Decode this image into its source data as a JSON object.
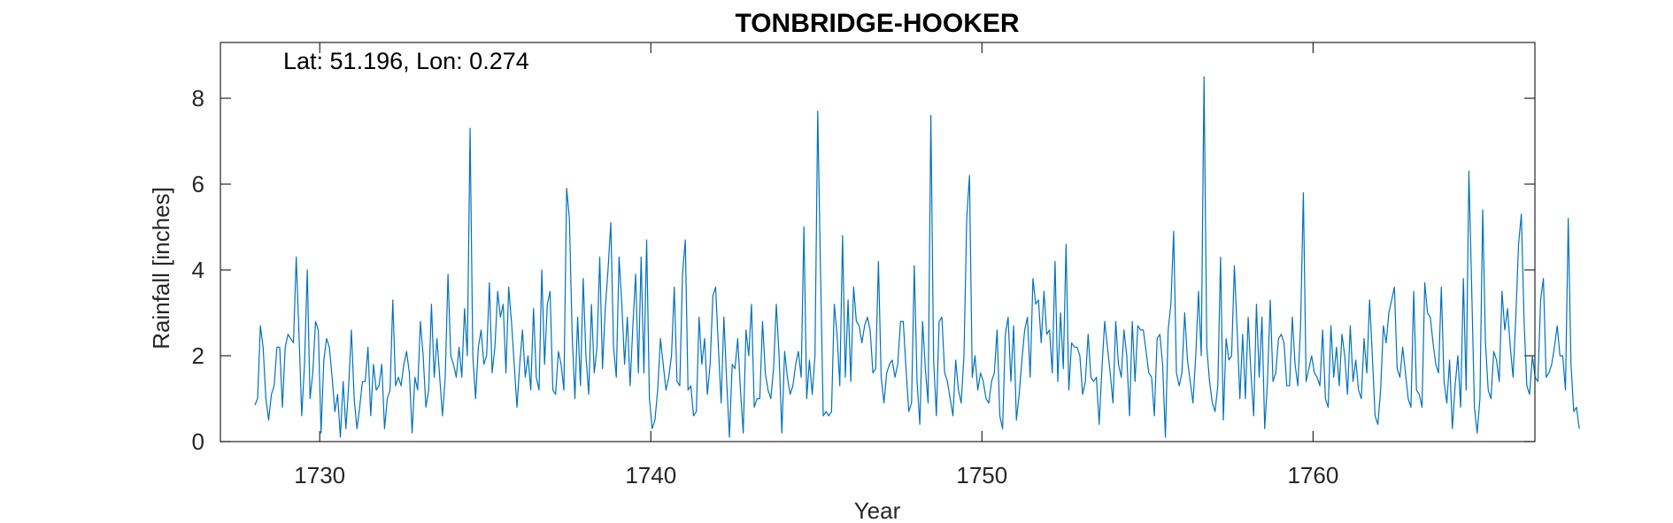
{
  "chart_data": {
    "type": "line",
    "title": "TONBRIDGE-HOOKER",
    "xlabel": "Year",
    "ylabel": "Rainfall [inches]",
    "annotation": "Lat: 51.196, Lon: 0.274",
    "xlim": [
      1727,
      1766.7
    ],
    "ylim": [
      0,
      9.3
    ],
    "xticks": [
      1730,
      1740,
      1750,
      1760
    ],
    "yticks": [
      0,
      2,
      4,
      6,
      8
    ],
    "grid": false,
    "line_color": "#0072BD",
    "series": [
      {
        "x_start": 1728.04,
        "x_step": 0.083333,
        "values": [
          0.85,
          1.0,
          2.7,
          2.2,
          1.0,
          0.5,
          1.1,
          1.3,
          2.2,
          2.2,
          0.8,
          2.2,
          2.5,
          2.4,
          2.3,
          4.3,
          2.5,
          0.6,
          1.8,
          4.0,
          1.0,
          1.6,
          2.8,
          2.6,
          0.2,
          1.9,
          2.4,
          2.2,
          1.5,
          0.7,
          1.1,
          0.1,
          1.4,
          0.3,
          1.3,
          2.6,
          1.0,
          0.3,
          0.8,
          1.4,
          1.4,
          2.2,
          0.6,
          1.8,
          1.2,
          1.3,
          1.8,
          0.3,
          1.0,
          1.2,
          3.3,
          1.3,
          1.5,
          1.3,
          1.8,
          2.1,
          1.6,
          0.2,
          1.5,
          1.2,
          2.8,
          2.0,
          0.8,
          1.2,
          3.2,
          1.5,
          2.4,
          1.5,
          0.6,
          1.5,
          3.9,
          2.0,
          1.8,
          1.5,
          2.2,
          1.5,
          3.1,
          2.0,
          7.3,
          2.0,
          1.0,
          2.2,
          2.6,
          1.8,
          2.0,
          3.7,
          1.6,
          2.2,
          3.5,
          2.9,
          3.2,
          1.6,
          3.6,
          2.8,
          1.8,
          0.8,
          1.8,
          2.6,
          1.5,
          2.0,
          1.2,
          3.1,
          1.5,
          1.2,
          4.0,
          1.8,
          3.2,
          3.5,
          1.2,
          1.1,
          2.1,
          1.8,
          1.2,
          5.9,
          5.2,
          2.5,
          1.0,
          2.9,
          1.3,
          3.8,
          2.0,
          1.1,
          3.2,
          1.6,
          2.2,
          4.3,
          1.7,
          3.1,
          4.0,
          5.1,
          2.2,
          1.5,
          4.3,
          3.2,
          1.8,
          2.9,
          1.3,
          2.7,
          3.9,
          1.6,
          4.3,
          1.6,
          4.7,
          1.0,
          0.3,
          0.5,
          1.2,
          2.4,
          1.8,
          1.2,
          1.5,
          2.0,
          3.6,
          1.4,
          1.3,
          3.9,
          4.7,
          1.2,
          1.3,
          0.6,
          0.7,
          2.9,
          1.8,
          2.4,
          1.1,
          1.8,
          3.4,
          3.6,
          2.2,
          0.9,
          2.9,
          1.4,
          0.1,
          1.8,
          1.7,
          2.4,
          1.2,
          0.2,
          2.6,
          2.0,
          3.2,
          0.8,
          1.0,
          1.0,
          2.8,
          1.6,
          1.2,
          1.0,
          1.7,
          3.2,
          2.0,
          0.2,
          2.1,
          1.5,
          1.1,
          1.3,
          1.8,
          2.1,
          1.5,
          5.0,
          1.0,
          1.9,
          1.1,
          2.0,
          7.7,
          4.0,
          0.6,
          0.7,
          0.6,
          0.7,
          3.2,
          2.5,
          1.3,
          4.8,
          1.5,
          3.3,
          1.4,
          3.6,
          2.8,
          2.7,
          2.3,
          2.7,
          2.9,
          2.6,
          1.6,
          1.7,
          4.2,
          1.5,
          0.9,
          1.6,
          1.8,
          1.9,
          1.5,
          1.8,
          2.8,
          2.8,
          1.7,
          0.7,
          0.9,
          4.1,
          1.4,
          0.4,
          2.8,
          1.7,
          0.9,
          7.6,
          1.9,
          0.6,
          2.8,
          2.9,
          1.6,
          1.4,
          1.0,
          0.6,
          1.9,
          1.2,
          0.9,
          2.0,
          5.2,
          6.2,
          1.5,
          2.0,
          1.2,
          1.6,
          1.4,
          1.0,
          0.9,
          1.4,
          1.6,
          2.6,
          0.6,
          0.3,
          2.5,
          2.9,
          1.4,
          2.7,
          0.5,
          1.1,
          1.9,
          2.6,
          2.9,
          1.5,
          3.8,
          3.2,
          3.3,
          2.3,
          3.5,
          2.5,
          2.6,
          1.6,
          4.2,
          1.4,
          3.0,
          1.7,
          4.6,
          1.2,
          2.3,
          2.2,
          2.2,
          2.0,
          1.1,
          1.4,
          2.5,
          1.5,
          1.4,
          1.5,
          0.4,
          1.7,
          2.8,
          2.2,
          1.6,
          0.9,
          2.8,
          1.8,
          1.5,
          2.6,
          2.0,
          0.6,
          2.8,
          1.4,
          2.7,
          2.6,
          2.6,
          2.1,
          1.6,
          1.5,
          0.6,
          2.4,
          2.5,
          1.8,
          0.1,
          2.6,
          3.2,
          4.9,
          1.6,
          1.3,
          1.6,
          3.0,
          1.9,
          1.4,
          0.9,
          2.0,
          3.5,
          2.0,
          8.5,
          2.2,
          1.4,
          0.9,
          0.7,
          1.3,
          4.3,
          0.5,
          2.4,
          1.9,
          2.0,
          4.1,
          2.6,
          1.0,
          2.5,
          1.0,
          2.9,
          1.6,
          0.6,
          3.2,
          1.5,
          2.9,
          0.3,
          1.4,
          3.3,
          1.4,
          1.6,
          2.4,
          2.5,
          2.3,
          1.3,
          1.3,
          2.9,
          1.8,
          1.3,
          2.7,
          5.8,
          1.4,
          1.7,
          2.0,
          1.6,
          1.5,
          1.3,
          2.6,
          1.0,
          0.8,
          2.7,
          1.5,
          2.2,
          1.3,
          2.5,
          2.0,
          1.1,
          2.7,
          1.4,
          1.9,
          1.2,
          1.0,
          2.4,
          1.6,
          3.3,
          2.0,
          0.6,
          0.4,
          1.2,
          2.7,
          2.3,
          3.0,
          3.3,
          3.6,
          1.7,
          1.5,
          2.2,
          1.6,
          1.0,
          0.8,
          3.5,
          1.2,
          1.1,
          0.8,
          3.7,
          3.0,
          2.9,
          2.3,
          1.8,
          1.6,
          3.6,
          1.4,
          0.9,
          1.9,
          0.3,
          1.3,
          2.0,
          0.8,
          3.8,
          1.2,
          6.3,
          3.6,
          0.8,
          0.2,
          1.0,
          5.4,
          2.3,
          1.2,
          1.0,
          2.1,
          1.9,
          1.4,
          3.5,
          2.6,
          3.1,
          2.2,
          1.5,
          2.9,
          4.6,
          5.3,
          2.8,
          1.3,
          1.1,
          2.0,
          1.5,
          1.4,
          3.3,
          3.8,
          1.5,
          1.6,
          1.8,
          2.2,
          2.7,
          2.0,
          2.0,
          1.2,
          5.2,
          1.8,
          0.7,
          0.8,
          0.3
        ]
      }
    ]
  }
}
